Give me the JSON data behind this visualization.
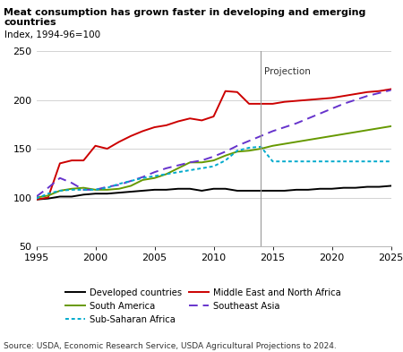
{
  "title": "Meat consumption has grown faster in developing and emerging countries",
  "index_label": "Index, 1994-96=100",
  "source": "Source: USDA, Economic Research Service, USDA Agricultural Projections to 2024.",
  "projection_label": "Projection",
  "projection_year": 2014,
  "xlim": [
    1995,
    2025
  ],
  "ylim": [
    50,
    250
  ],
  "yticks": [
    50,
    100,
    150,
    200,
    250
  ],
  "xticks": [
    1995,
    2000,
    2005,
    2010,
    2015,
    2020,
    2025
  ],
  "series": {
    "Developed countries": {
      "color": "#000000",
      "linestyle": "solid",
      "linewidth": 1.4,
      "years": [
        1995,
        1996,
        1997,
        1998,
        1999,
        2000,
        2001,
        2002,
        2003,
        2004,
        2005,
        2006,
        2007,
        2008,
        2009,
        2010,
        2011,
        2012,
        2013,
        2014,
        2015,
        2016,
        2017,
        2018,
        2019,
        2020,
        2021,
        2022,
        2023,
        2024,
        2025
      ],
      "values": [
        98,
        99,
        101,
        101,
        103,
        104,
        104,
        105,
        106,
        107,
        108,
        108,
        109,
        109,
        107,
        109,
        109,
        107,
        107,
        107,
        107,
        107,
        108,
        108,
        109,
        109,
        110,
        110,
        111,
        111,
        112
      ]
    },
    "Middle East and North Africa": {
      "color": "#cc0000",
      "linestyle": "solid",
      "linewidth": 1.4,
      "years": [
        1995,
        1996,
        1997,
        1998,
        1999,
        2000,
        2001,
        2002,
        2003,
        2004,
        2005,
        2006,
        2007,
        2008,
        2009,
        2010,
        2011,
        2012,
        2013,
        2014,
        2015,
        2016,
        2017,
        2018,
        2019,
        2020,
        2021,
        2022,
        2023,
        2024,
        2025
      ],
      "values": [
        98,
        100,
        135,
        138,
        138,
        153,
        150,
        157,
        163,
        168,
        172,
        174,
        178,
        181,
        179,
        183,
        209,
        208,
        196,
        196,
        196,
        198,
        199,
        200,
        201,
        202,
        204,
        206,
        208,
        209,
        211
      ]
    },
    "South America": {
      "color": "#669900",
      "linestyle": "solid",
      "linewidth": 1.4,
      "years": [
        1995,
        1996,
        1997,
        1998,
        1999,
        2000,
        2001,
        2002,
        2003,
        2004,
        2005,
        2006,
        2007,
        2008,
        2009,
        2010,
        2011,
        2012,
        2013,
        2014,
        2015,
        2016,
        2017,
        2018,
        2019,
        2020,
        2021,
        2022,
        2023,
        2024,
        2025
      ],
      "values": [
        100,
        102,
        107,
        109,
        110,
        108,
        108,
        109,
        112,
        118,
        120,
        124,
        130,
        136,
        136,
        138,
        143,
        147,
        148,
        150,
        153,
        155,
        157,
        159,
        161,
        163,
        165,
        167,
        169,
        171,
        173
      ]
    },
    "Southeast Asia": {
      "color": "#6633cc",
      "linestyle": "dashed",
      "linewidth": 1.4,
      "years": [
        1995,
        1996,
        1997,
        1998,
        1999,
        2000,
        2001,
        2002,
        2003,
        2004,
        2005,
        2006,
        2007,
        2008,
        2009,
        2010,
        2011,
        2012,
        2013,
        2014,
        2015,
        2016,
        2017,
        2018,
        2019,
        2020,
        2021,
        2022,
        2023,
        2024,
        2025
      ],
      "values": [
        101,
        110,
        120,
        115,
        108,
        108,
        111,
        113,
        117,
        121,
        126,
        130,
        133,
        136,
        138,
        142,
        147,
        153,
        158,
        163,
        168,
        172,
        176,
        181,
        186,
        191,
        196,
        200,
        204,
        207,
        210
      ]
    },
    "Sub-Saharan Africa": {
      "color": "#00aacc",
      "linestyle": "dotted",
      "linewidth": 1.4,
      "years": [
        1995,
        1996,
        1997,
        1998,
        1999,
        2000,
        2001,
        2002,
        2003,
        2004,
        2005,
        2006,
        2007,
        2008,
        2009,
        2010,
        2011,
        2012,
        2013,
        2014,
        2015,
        2016,
        2017,
        2018,
        2019,
        2020,
        2021,
        2022,
        2023,
        2024,
        2025
      ],
      "values": [
        99,
        104,
        107,
        108,
        108,
        108,
        110,
        114,
        117,
        120,
        122,
        124,
        126,
        128,
        130,
        132,
        138,
        148,
        151,
        152,
        137,
        137,
        137,
        137,
        137,
        137,
        137,
        137,
        137,
        137,
        137
      ]
    }
  },
  "legend_col1": [
    {
      "label": "Developed countries",
      "color": "#000000",
      "linestyle": "solid"
    },
    {
      "label": "South America",
      "color": "#669900",
      "linestyle": "solid"
    },
    {
      "label": "Sub-Saharan Africa",
      "color": "#00aacc",
      "linestyle": "dotted"
    }
  ],
  "legend_col2": [
    {
      "label": "Middle East and North Africa",
      "color": "#cc0000",
      "linestyle": "solid"
    },
    {
      "label": "Southeast Asia",
      "color": "#6633cc",
      "linestyle": "dashed"
    }
  ]
}
